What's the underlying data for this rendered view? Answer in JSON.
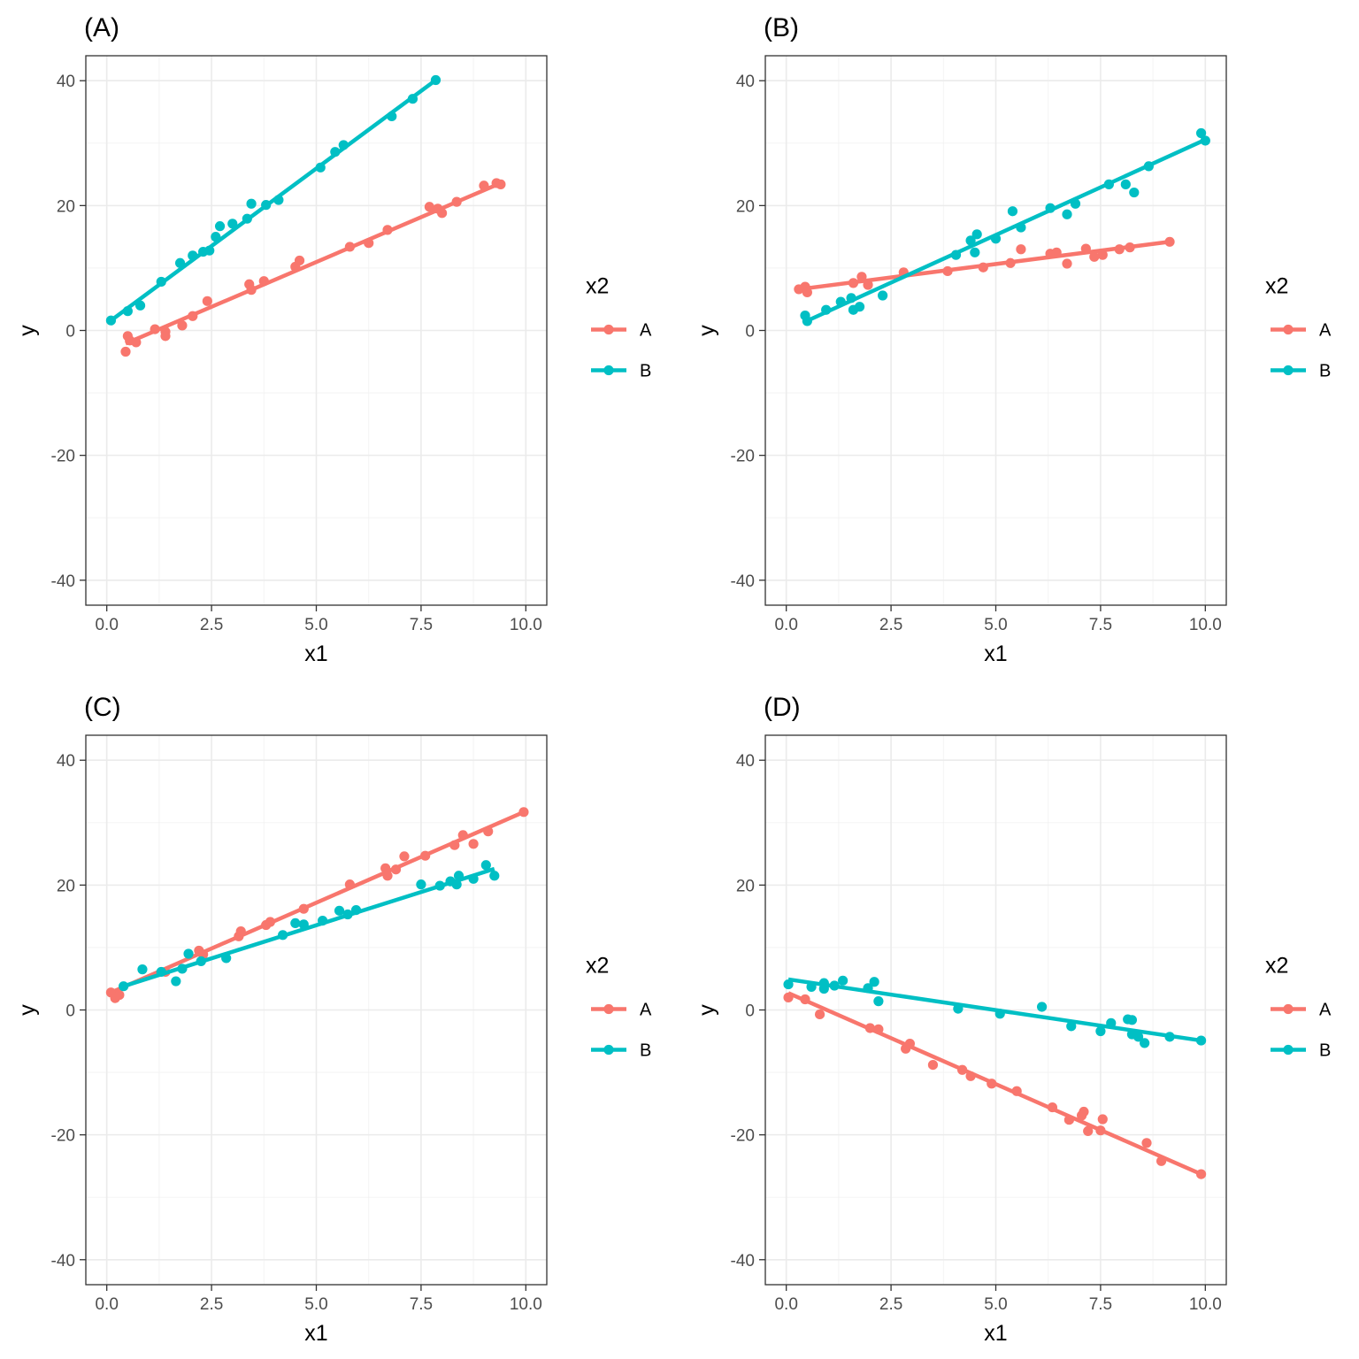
{
  "colors": {
    "A": "#F8766D",
    "B": "#00BFC4"
  },
  "chart_data": [
    {
      "type": "scatter",
      "title": "(A)",
      "xlabel": "x1",
      "ylabel": "y",
      "xlim": [
        -0.5,
        10.5
      ],
      "ylim": [
        -44,
        44
      ],
      "xticks": [
        0,
        2.5,
        5,
        7.5,
        10
      ],
      "xtick_labels": [
        "0.0",
        "2.5",
        "5.0",
        "7.5",
        "10.0"
      ],
      "yticks": [
        -40,
        -20,
        0,
        20,
        40
      ],
      "ytick_labels": [
        "-40",
        "-20",
        "0",
        "20",
        "40"
      ],
      "grid": true,
      "legend": {
        "title": "x2",
        "position": "right",
        "entries": [
          "A",
          "B"
        ]
      },
      "series": [
        {
          "name": "A",
          "line": [
            [
              0.45,
              -2.1
            ],
            [
              9.4,
              23.6
            ]
          ],
          "points": [
            [
              0.45,
              -3.4
            ],
            [
              0.5,
              -0.9
            ],
            [
              0.55,
              -1.6
            ],
            [
              0.7,
              -1.9
            ],
            [
              1.15,
              0.2
            ],
            [
              1.4,
              -0.2
            ],
            [
              1.4,
              -0.9
            ],
            [
              1.8,
              0.8
            ],
            [
              2.05,
              2.3
            ],
            [
              2.4,
              4.7
            ],
            [
              3.4,
              7.4
            ],
            [
              3.45,
              6.5
            ],
            [
              3.75,
              7.9
            ],
            [
              4.5,
              10.2
            ],
            [
              4.6,
              11.2
            ],
            [
              5.8,
              13.4
            ],
            [
              6.25,
              14.0
            ],
            [
              6.7,
              16.1
            ],
            [
              7.7,
              19.8
            ],
            [
              7.9,
              19.5
            ],
            [
              8.0,
              18.8
            ],
            [
              8.35,
              20.6
            ],
            [
              9.0,
              23.2
            ],
            [
              9.3,
              23.6
            ],
            [
              9.4,
              23.4
            ]
          ]
        },
        {
          "name": "B",
          "line": [
            [
              0.1,
              1.6
            ],
            [
              7.85,
              40.1
            ]
          ],
          "points": [
            [
              0.1,
              1.6
            ],
            [
              0.5,
              3.1
            ],
            [
              0.8,
              4.0
            ],
            [
              1.3,
              7.8
            ],
            [
              1.75,
              10.8
            ],
            [
              2.05,
              12.0
            ],
            [
              2.3,
              12.6
            ],
            [
              2.45,
              12.8
            ],
            [
              2.6,
              15.0
            ],
            [
              2.7,
              16.7
            ],
            [
              3.0,
              17.1
            ],
            [
              3.35,
              17.9
            ],
            [
              3.45,
              20.3
            ],
            [
              3.8,
              20.1
            ],
            [
              4.1,
              20.9
            ],
            [
              5.1,
              26.1
            ],
            [
              5.45,
              28.6
            ],
            [
              5.65,
              29.7
            ],
            [
              6.8,
              34.3
            ],
            [
              7.3,
              37.1
            ],
            [
              7.85,
              40.1
            ]
          ]
        }
      ]
    },
    {
      "type": "scatter",
      "title": "(B)",
      "xlabel": "x1",
      "ylabel": "y",
      "xlim": [
        -0.5,
        10.5
      ],
      "ylim": [
        -44,
        44
      ],
      "xticks": [
        0,
        2.5,
        5,
        7.5,
        10
      ],
      "xtick_labels": [
        "0.0",
        "2.5",
        "5.0",
        "7.5",
        "10.0"
      ],
      "yticks": [
        -40,
        -20,
        0,
        20,
        40
      ],
      "ytick_labels": [
        "-40",
        "-20",
        "0",
        "20",
        "40"
      ],
      "grid": true,
      "legend": {
        "title": "x2",
        "position": "right",
        "entries": [
          "A",
          "B"
        ]
      },
      "series": [
        {
          "name": "A",
          "line": [
            [
              0.3,
              6.6
            ],
            [
              9.15,
              14.2
            ]
          ],
          "points": [
            [
              0.3,
              6.6
            ],
            [
              0.45,
              7.0
            ],
            [
              0.5,
              6.1
            ],
            [
              1.6,
              7.6
            ],
            [
              1.8,
              8.6
            ],
            [
              1.95,
              7.3
            ],
            [
              2.8,
              9.3
            ],
            [
              3.85,
              9.5
            ],
            [
              4.7,
              10.1
            ],
            [
              5.35,
              10.8
            ],
            [
              5.6,
              13.0
            ],
            [
              6.3,
              12.3
            ],
            [
              6.45,
              12.5
            ],
            [
              6.7,
              10.7
            ],
            [
              7.15,
              13.1
            ],
            [
              7.35,
              11.8
            ],
            [
              7.55,
              12.1
            ],
            [
              7.95,
              13.0
            ],
            [
              8.2,
              13.3
            ],
            [
              9.15,
              14.2
            ]
          ]
        },
        {
          "name": "B",
          "line": [
            [
              0.45,
              1.4
            ],
            [
              9.95,
              30.4
            ]
          ],
          "points": [
            [
              0.45,
              2.4
            ],
            [
              0.5,
              1.5
            ],
            [
              0.95,
              3.3
            ],
            [
              1.3,
              4.6
            ],
            [
              1.55,
              5.2
            ],
            [
              1.6,
              3.3
            ],
            [
              1.75,
              3.8
            ],
            [
              2.3,
              5.6
            ],
            [
              4.05,
              12.1
            ],
            [
              4.4,
              14.4
            ],
            [
              4.5,
              12.5
            ],
            [
              4.55,
              15.4
            ],
            [
              5.0,
              14.7
            ],
            [
              5.4,
              19.1
            ],
            [
              5.6,
              16.5
            ],
            [
              6.3,
              19.6
            ],
            [
              6.7,
              18.6
            ],
            [
              6.9,
              20.3
            ],
            [
              7.7,
              23.4
            ],
            [
              8.1,
              23.4
            ],
            [
              8.3,
              22.1
            ],
            [
              8.65,
              26.3
            ],
            [
              9.9,
              31.6
            ],
            [
              10.0,
              30.4
            ]
          ]
        }
      ]
    },
    {
      "type": "scatter",
      "title": "(C)",
      "xlabel": "x1",
      "ylabel": "y",
      "xlim": [
        -0.5,
        10.5
      ],
      "ylim": [
        -44,
        44
      ],
      "xticks": [
        0,
        2.5,
        5,
        7.5,
        10
      ],
      "xtick_labels": [
        "0.0",
        "2.5",
        "5.0",
        "7.5",
        "10.0"
      ],
      "yticks": [
        -40,
        -20,
        0,
        20,
        40
      ],
      "ytick_labels": [
        "-40",
        "-20",
        "0",
        "20",
        "40"
      ],
      "grid": true,
      "legend": {
        "title": "x2",
        "position": "right",
        "entries": [
          "A",
          "B"
        ]
      },
      "series": [
        {
          "name": "A",
          "line": [
            [
              0.1,
              2.8
            ],
            [
              9.95,
              31.7
            ]
          ],
          "points": [
            [
              0.1,
              2.8
            ],
            [
              0.2,
              1.9
            ],
            [
              0.3,
              2.4
            ],
            [
              1.4,
              6.1
            ],
            [
              2.2,
              9.5
            ],
            [
              2.3,
              8.9
            ],
            [
              3.15,
              11.8
            ],
            [
              3.2,
              12.6
            ],
            [
              3.8,
              13.6
            ],
            [
              3.9,
              14.1
            ],
            [
              4.7,
              16.2
            ],
            [
              5.8,
              20.1
            ],
            [
              6.65,
              22.7
            ],
            [
              6.7,
              21.5
            ],
            [
              6.9,
              22.5
            ],
            [
              7.1,
              24.6
            ],
            [
              7.6,
              24.7
            ],
            [
              8.3,
              26.4
            ],
            [
              8.5,
              28.0
            ],
            [
              8.75,
              26.6
            ],
            [
              9.1,
              28.6
            ],
            [
              9.95,
              31.7
            ]
          ]
        },
        {
          "name": "B",
          "line": [
            [
              0.4,
              3.8
            ],
            [
              9.25,
              22.6
            ]
          ],
          "points": [
            [
              0.4,
              3.8
            ],
            [
              0.85,
              6.5
            ],
            [
              1.3,
              6.1
            ],
            [
              1.65,
              4.6
            ],
            [
              1.8,
              6.6
            ],
            [
              1.95,
              9.0
            ],
            [
              2.25,
              7.8
            ],
            [
              2.85,
              8.3
            ],
            [
              4.2,
              12.0
            ],
            [
              4.5,
              13.9
            ],
            [
              4.7,
              13.7
            ],
            [
              5.15,
              14.3
            ],
            [
              5.55,
              15.9
            ],
            [
              5.75,
              15.3
            ],
            [
              5.95,
              16.0
            ],
            [
              7.5,
              20.1
            ],
            [
              7.95,
              19.9
            ],
            [
              8.2,
              20.6
            ],
            [
              8.35,
              20.1
            ],
            [
              8.4,
              21.5
            ],
            [
              8.75,
              21.0
            ],
            [
              9.05,
              23.2
            ],
            [
              9.25,
              21.5
            ]
          ]
        }
      ]
    },
    {
      "type": "scatter",
      "title": "(D)",
      "xlabel": "x1",
      "ylabel": "y",
      "xlim": [
        -0.5,
        10.5
      ],
      "ylim": [
        -44,
        44
      ],
      "xticks": [
        0,
        2.5,
        5,
        7.5,
        10
      ],
      "xtick_labels": [
        "0.0",
        "2.5",
        "5.0",
        "7.5",
        "10.0"
      ],
      "yticks": [
        -40,
        -20,
        0,
        20,
        40
      ],
      "ytick_labels": [
        "-40",
        "-20",
        "0",
        "20",
        "40"
      ],
      "grid": true,
      "legend": {
        "title": "x2",
        "position": "right",
        "entries": [
          "A",
          "B"
        ]
      },
      "series": [
        {
          "name": "A",
          "line": [
            [
              0.05,
              2.7
            ],
            [
              9.9,
              -26.3
            ]
          ],
          "points": [
            [
              0.05,
              2.0
            ],
            [
              0.45,
              1.7
            ],
            [
              0.8,
              -0.7
            ],
            [
              2.0,
              -2.9
            ],
            [
              2.2,
              -3.1
            ],
            [
              2.85,
              -6.2
            ],
            [
              2.95,
              -5.4
            ],
            [
              3.5,
              -8.8
            ],
            [
              4.2,
              -9.6
            ],
            [
              4.4,
              -10.6
            ],
            [
              4.9,
              -11.8
            ],
            [
              5.5,
              -13.0
            ],
            [
              6.35,
              -15.6
            ],
            [
              6.75,
              -17.6
            ],
            [
              7.05,
              -16.9
            ],
            [
              7.1,
              -16.3
            ],
            [
              7.2,
              -19.4
            ],
            [
              7.5,
              -19.3
            ],
            [
              7.55,
              -17.5
            ],
            [
              8.6,
              -21.3
            ],
            [
              8.95,
              -24.2
            ],
            [
              9.9,
              -26.3
            ]
          ]
        },
        {
          "name": "B",
          "line": [
            [
              0.05,
              4.9
            ],
            [
              9.9,
              -4.9
            ]
          ],
          "points": [
            [
              0.05,
              4.1
            ],
            [
              0.6,
              3.7
            ],
            [
              0.9,
              4.3
            ],
            [
              0.9,
              3.4
            ],
            [
              1.15,
              3.9
            ],
            [
              1.35,
              4.7
            ],
            [
              1.95,
              3.5
            ],
            [
              2.1,
              4.5
            ],
            [
              2.2,
              1.4
            ],
            [
              4.1,
              0.2
            ],
            [
              5.1,
              -0.6
            ],
            [
              6.1,
              0.5
            ],
            [
              6.8,
              -2.6
            ],
            [
              7.5,
              -3.4
            ],
            [
              7.75,
              -2.1
            ],
            [
              8.15,
              -1.5
            ],
            [
              8.25,
              -1.6
            ],
            [
              8.25,
              -3.9
            ],
            [
              8.4,
              -4.3
            ],
            [
              8.55,
              -5.3
            ],
            [
              9.15,
              -4.3
            ],
            [
              9.9,
              -4.9
            ]
          ]
        }
      ]
    }
  ]
}
